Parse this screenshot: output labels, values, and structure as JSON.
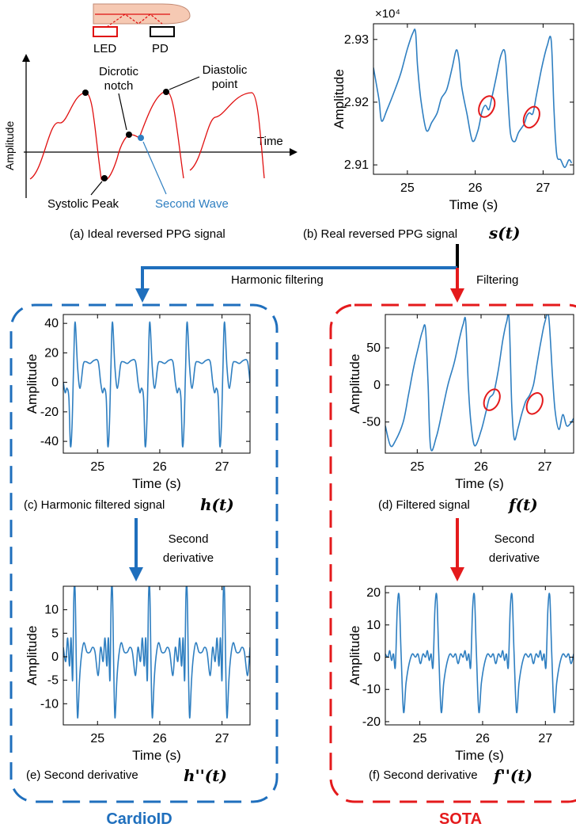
{
  "colors": {
    "signal": "#2f7fc1",
    "ideal": "#e01010",
    "cardio": "#1f6fbd",
    "sota": "#e41a1c",
    "axis": "#000000"
  },
  "panel_a": {
    "caption": "(a) Ideal reversed PPG signal",
    "sensor": {
      "led": "LED",
      "pd": "PD"
    },
    "ylabel": "Amplitude",
    "xlabel": "Time",
    "labels": {
      "dicrotic": "Dicrotic\nnotch",
      "diastolic": "Diastolic\npoint",
      "systolic": "Systolic Peak",
      "second_wave": "Second Wave"
    }
  },
  "panel_b": {
    "caption_text": "(b) Real reversed PPG signal",
    "caption_math": "s(t)"
  },
  "panel_c": {
    "caption_text": "(c) Harmonic filtered signal",
    "caption_math": "h(t)"
  },
  "panel_d": {
    "caption_text": "(d) Filtered signal",
    "caption_math": "f(t)"
  },
  "panel_e": {
    "caption_text": "(e)  Second derivative",
    "caption_math": "h''(t)"
  },
  "panel_f": {
    "caption_text": "(f) Second derivative",
    "caption_math": "f''(t)"
  },
  "flow": {
    "harmonic_filtering": "Harmonic filtering",
    "filtering": "Filtering",
    "second_derivative_left": "Second\nderivative",
    "second_derivative_right": "Second\nderivative"
  },
  "groups": {
    "left": "CardioID",
    "right": "SOTA"
  },
  "chart_data": [
    {
      "id": "b",
      "type": "line",
      "xlabel": "Time (s)",
      "ylabel": "Amplitude",
      "exponent": "×10⁴",
      "x_ticks": [
        25,
        26,
        27
      ],
      "y_ticks": [
        2.91,
        2.92,
        2.93
      ],
      "xlim": [
        24.5,
        27.45
      ],
      "ylim": [
        2.9085,
        2.9325
      ],
      "series": [
        {
          "x": [
            24.5,
            24.58,
            24.62,
            24.7,
            24.8,
            24.9,
            25.0,
            25.08,
            25.12,
            25.15,
            25.2,
            25.28,
            25.36,
            25.44,
            25.5,
            25.58,
            25.66,
            25.72,
            25.76,
            25.8,
            25.88,
            25.96,
            26.04,
            26.1,
            26.15,
            26.2,
            26.24,
            26.3,
            26.38,
            26.44,
            26.48,
            26.52,
            26.58,
            26.64,
            26.72,
            26.76,
            26.8,
            26.85,
            26.9,
            26.98,
            27.06,
            27.12,
            27.16,
            27.2,
            27.26,
            27.32,
            27.38,
            27.42
          ],
          "y": [
            2.9255,
            2.9205,
            2.917,
            2.9188,
            2.9215,
            2.9245,
            2.9285,
            2.931,
            2.9312,
            2.9258,
            2.9203,
            2.9155,
            2.9168,
            2.9183,
            2.9206,
            2.922,
            2.9255,
            2.9283,
            2.9268,
            2.9225,
            2.918,
            2.9138,
            2.9155,
            2.9185,
            2.9195,
            2.9188,
            2.9205,
            2.9235,
            2.9275,
            2.9278,
            2.921,
            2.915,
            2.9137,
            2.9152,
            2.9165,
            2.9178,
            2.9183,
            2.9182,
            2.921,
            2.9255,
            2.929,
            2.9298,
            2.919,
            2.9117,
            2.9108,
            2.9096,
            2.9108,
            2.9103
          ]
        }
      ],
      "annotations": [
        {
          "x": 26.17,
          "y": 2.9193,
          "shape": "ellipse"
        },
        {
          "x": 26.83,
          "y": 2.9176,
          "shape": "ellipse"
        }
      ]
    },
    {
      "id": "c",
      "type": "line",
      "xlabel": "Time (s)",
      "ylabel": "Amplitude",
      "x_ticks": [
        25,
        26,
        27
      ],
      "y_ticks": [
        -40,
        -20,
        0,
        20,
        40
      ],
      "xlim": [
        24.45,
        27.45
      ],
      "ylim": [
        -48,
        46
      ],
      "period": 0.6,
      "series": [
        {
          "x": [
            -0.3,
            -0.24,
            -0.18,
            -0.14,
            -0.11,
            -0.08,
            -0.05,
            -0.025,
            0.0,
            0.025,
            0.05,
            0.09,
            0.13,
            0.18,
            0.22,
            0.27,
            0.3
          ],
          "y": [
            13,
            15,
            14,
            0,
            -7,
            -4,
            -11,
            -43,
            -30,
            10,
            41,
            10,
            -4,
            12,
            14,
            13,
            13
          ]
        }
      ],
      "phase0": 25.19
    },
    {
      "id": "d",
      "type": "line",
      "xlabel": "Time (s)",
      "ylabel": "Amplitude",
      "x_ticks": [
        25,
        26,
        27
      ],
      "y_ticks": [
        -50,
        0,
        50
      ],
      "xlim": [
        24.5,
        27.45
      ],
      "ylim": [
        -92,
        95
      ],
      "series": [
        {
          "x": [
            24.5,
            24.58,
            24.66,
            24.78,
            24.86,
            24.94,
            25.02,
            25.08,
            25.13,
            25.17,
            25.21,
            25.3,
            25.38,
            25.48,
            25.58,
            25.66,
            25.72,
            25.76,
            25.8,
            25.84,
            25.9,
            26.0,
            26.08,
            26.13,
            26.2,
            26.27,
            26.34,
            26.4,
            26.44,
            26.48,
            26.52,
            26.58,
            26.64,
            26.7,
            26.76,
            26.82,
            26.88,
            26.94,
            27.0,
            27.06,
            27.12,
            27.16,
            27.22,
            27.28,
            27.34,
            27.4,
            27.45
          ],
          "y": [
            -55,
            -82,
            -75,
            -50,
            -15,
            22,
            52,
            72,
            76,
            0,
            -85,
            -70,
            -40,
            0,
            30,
            62,
            82,
            85,
            0,
            -50,
            -82,
            -62,
            -35,
            -18,
            -10,
            20,
            60,
            85,
            88,
            -25,
            -73,
            -58,
            -38,
            -22,
            -14,
            0,
            30,
            60,
            85,
            92,
            10,
            -35,
            -60,
            -40,
            -55,
            -52,
            -45
          ]
        }
      ],
      "annotations": [
        {
          "x": 26.17,
          "y": -20,
          "shape": "ellipse"
        },
        {
          "x": 26.84,
          "y": -25,
          "shape": "ellipse"
        }
      ]
    },
    {
      "id": "e",
      "type": "line",
      "xlabel": "Time (s)",
      "ylabel": "Amplitude",
      "x_ticks": [
        25,
        26,
        27
      ],
      "y_ticks": [
        -10,
        -5,
        0,
        5,
        10
      ],
      "xlim": [
        24.45,
        27.45
      ],
      "ylim": [
        -14.5,
        15
      ],
      "period": 0.6,
      "series": [
        {
          "x": [
            -0.3,
            -0.25,
            -0.21,
            -0.17,
            -0.14,
            -0.11,
            -0.085,
            -0.06,
            -0.04,
            -0.02,
            0.0,
            0.02,
            0.05,
            0.08,
            0.12,
            0.17,
            0.22,
            0.26,
            0.3
          ],
          "y": [
            1,
            -4,
            2,
            -1,
            4,
            -2,
            4,
            -5,
            13,
            14,
            -2,
            -13,
            -5,
            0,
            3,
            1,
            1,
            2,
            1
          ]
        }
      ],
      "phase0": 25.26
    },
    {
      "id": "f",
      "type": "line",
      "xlabel": "Time (s)",
      "ylabel": "Amplitude",
      "x_ticks": [
        25,
        26,
        27
      ],
      "y_ticks": [
        -20,
        -10,
        0,
        10,
        20
      ],
      "xlim": [
        24.45,
        27.45
      ],
      "ylim": [
        -21,
        22
      ],
      "period": 0.6,
      "series": [
        {
          "x": [
            -0.3,
            -0.26,
            -0.22,
            -0.18,
            -0.15,
            -0.12,
            -0.09,
            -0.06,
            -0.03,
            0.0,
            0.03,
            0.07,
            0.11,
            0.16,
            0.21,
            0.26,
            0.3
          ],
          "y": [
            1,
            -2,
            1,
            0,
            2,
            -1,
            1,
            -3,
            15,
            19,
            2,
            -17,
            -8,
            -2,
            1,
            0,
            1
          ]
        }
      ],
      "phase0": 25.27
    }
  ]
}
